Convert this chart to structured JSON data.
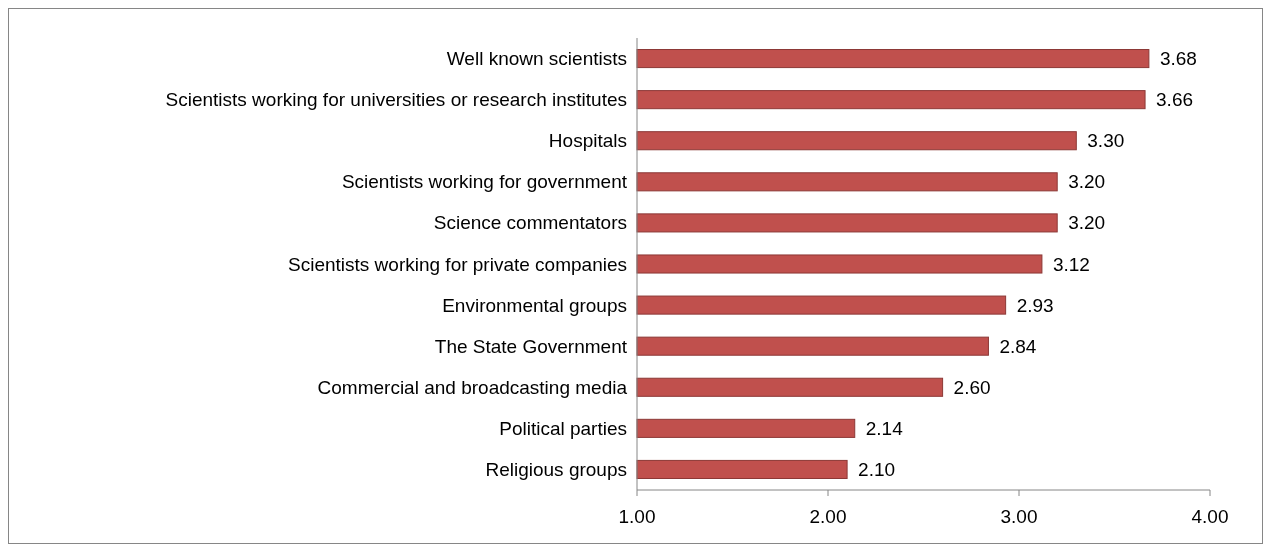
{
  "chart_data": {
    "type": "bar",
    "orientation": "horizontal",
    "categories": [
      "Well known scientists",
      "Scientists working for universities or research institutes",
      "Hospitals",
      "Scientists working for government",
      "Science commentators",
      "Scientists working for private companies",
      "Environmental groups",
      "The State Government",
      "Commercial and broadcasting media",
      "Political parties",
      "Religious groups"
    ],
    "values": [
      3.68,
      3.66,
      3.3,
      3.2,
      3.2,
      3.12,
      2.93,
      2.84,
      2.6,
      2.14,
      2.1
    ],
    "value_labels": [
      "3.68",
      "3.66",
      "3.30",
      "3.20",
      "3.20",
      "3.12",
      "2.93",
      "2.84",
      "2.60",
      "2.14",
      "2.10"
    ],
    "color": "#c0504d",
    "xlim": [
      1,
      4
    ],
    "xticks": [
      {
        "value": 1,
        "label": "1.00"
      },
      {
        "value": 2,
        "label": "2.00"
      },
      {
        "value": 3,
        "label": "3.00"
      },
      {
        "value": 4,
        "label": "4.00"
      }
    ],
    "grid": false
  }
}
